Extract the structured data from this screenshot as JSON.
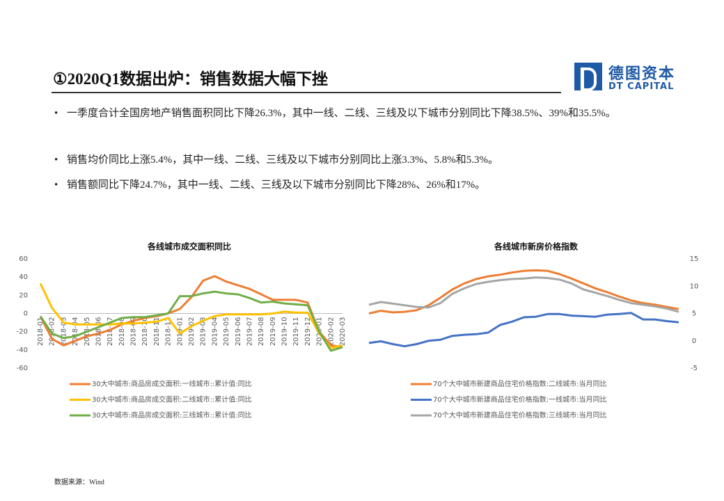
{
  "header": {
    "title": "①2020Q1数据出炉：销售数据大幅下挫",
    "logo_cn": "德图资本",
    "logo_en": "DT CAPITAL"
  },
  "bullets": [
    "一季度合计全国房地产销售面积同比下降26.3%，其中一线、二线、三线及以下城市分别同比下降38.5%、39%和35.5%。",
    "销售均价同比上涨5.4%，其中一线、二线、三线及以下城市分别同比上涨3.3%、5.8%和5.3%。",
    "销售额同比下降24.7%，其中一线、二线、三线及以下城市分别同比下降28%、26%和17%。"
  ],
  "chart_data": [
    {
      "type": "line",
      "title": "各线城市成交面积同比",
      "categories": [
        "2018-01",
        "2018-02",
        "2018-03",
        "2018-04",
        "2018-05",
        "2018-06",
        "2018-07",
        "2018-08",
        "2018-09",
        "2018-10",
        "2018-11",
        "2018-12",
        "2019-01",
        "2019-02",
        "2019-03",
        "2019-04",
        "2019-05",
        "2019-06",
        "2019-07",
        "2019-08",
        "2019-09",
        "2019-10",
        "2019-11",
        "2019-12",
        "2020-01",
        "2020-02",
        "2020-03"
      ],
      "ylim": [
        -60,
        60
      ],
      "yticks": [
        -60,
        -40,
        -20,
        0,
        20,
        40,
        60
      ],
      "series": [
        {
          "name": "30大中城市:商品房成交面积:一线城市::累计值:同比",
          "color": "#ed7d31",
          "values": [
            -3,
            -28,
            -35,
            -30,
            -25,
            -22,
            -18,
            -12,
            -8,
            -5,
            -3,
            0,
            5,
            18,
            36,
            41,
            35,
            31,
            27,
            21,
            15,
            15,
            15,
            12,
            -20,
            -35,
            -37
          ]
        },
        {
          "name": "30大中城市:商品房成交面积:二线城市::累计值:同比",
          "color": "#ffc000",
          "values": [
            33,
            6,
            -10,
            -12,
            -12,
            -12,
            -12,
            -11,
            -11,
            -10,
            -9,
            -5,
            -22,
            -14,
            -8,
            -3,
            -1,
            -1,
            -1,
            -1,
            0,
            2,
            1,
            1,
            -22,
            -38,
            -35
          ]
        },
        {
          "name": "30大中城市:商品房成交面积:三线城市::累计值:同比",
          "color": "#70ad47",
          "values": [
            -3,
            -22,
            -27,
            -25,
            -20,
            -15,
            -10,
            -5,
            -4,
            -4,
            -2,
            0,
            19,
            19,
            22,
            24,
            22,
            21,
            17,
            12,
            13,
            11,
            10,
            9,
            -20,
            -41,
            -37
          ]
        }
      ]
    },
    {
      "type": "line",
      "title": "各线城市新房价格指数",
      "categories": [
        null,
        null,
        null,
        null,
        null,
        null,
        null,
        null,
        null,
        null,
        null,
        null,
        null,
        null,
        null,
        null,
        null,
        null,
        null,
        null,
        null,
        null,
        null,
        null,
        null,
        null,
        null
      ],
      "ylim": [
        -5,
        15
      ],
      "yticks": [
        -5,
        0,
        5,
        10,
        15
      ],
      "series": [
        {
          "name": "70个大中城市新建商品住宅价格指数:二线城市:当月同比",
          "color": "#ed7d31",
          "values": [
            5.0,
            5.5,
            5.2,
            5.3,
            5.6,
            6.5,
            7.9,
            9.4,
            10.5,
            11.3,
            11.8,
            12.1,
            12.5,
            12.8,
            12.9,
            12.8,
            12.2,
            11.4,
            10.5,
            9.6,
            8.9,
            8.1,
            7.4,
            6.9,
            6.6,
            6.2,
            5.8
          ]
        },
        {
          "name": "70个大中城市新建商品住宅价格指数:一线城市:当月同比",
          "color": "#4472c4",
          "values": [
            -0.4,
            -0.1,
            -0.6,
            -1,
            -0.6,
            0,
            0.2,
            0.9,
            1.1,
            1.2,
            1.5,
            2.9,
            3.5,
            4.3,
            4.4,
            4.9,
            4.9,
            4.6,
            4.5,
            4.4,
            4.8,
            4.9,
            5.1,
            3.9,
            3.9,
            3.6,
            3.4
          ]
        },
        {
          "name": "70个大中城市新建商品住宅价格指数:三线城市:当月同比",
          "color": "#a5a5a5",
          "values": [
            6.6,
            7.1,
            6.8,
            6.5,
            6.2,
            6.1,
            6.9,
            8.6,
            9.6,
            10.4,
            10.8,
            11.1,
            11.3,
            11.4,
            11.6,
            11.5,
            11.2,
            10.5,
            9.4,
            8.8,
            8.2,
            7.5,
            6.9,
            6.6,
            6.3,
            5.9,
            5.3
          ]
        }
      ]
    }
  ],
  "source": "数据来源：Wind"
}
